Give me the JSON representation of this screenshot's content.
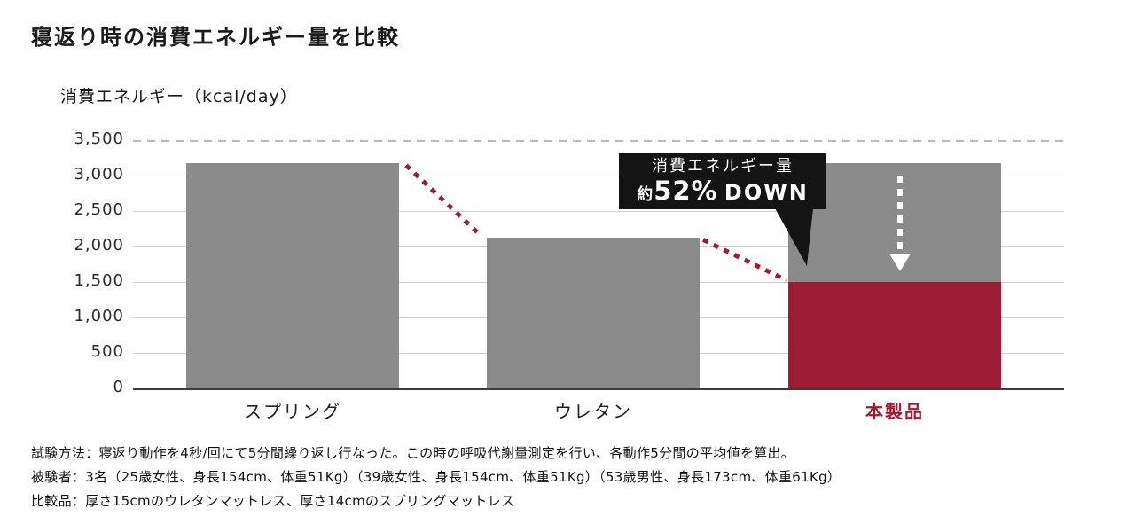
{
  "chart_data": {
    "type": "bar",
    "title": "寝返り時の消費エネルギー量を比較",
    "ylabel": "消費エネルギー（kcal/day）",
    "categories": [
      "スプリング",
      "ウレタン",
      "本製品"
    ],
    "values": [
      3170,
      2120,
      1500
    ],
    "baseline_reference": 3170,
    "highlight_index": 2,
    "ylim": [
      0,
      3500
    ],
    "ytick_interval": 500,
    "ytick_labels": [
      "3,500",
      "3,000",
      "2,500",
      "2,000",
      "1,500",
      "1,000",
      "500",
      "0"
    ],
    "grid": true,
    "legend": false,
    "bar_color": "#8b8b8b",
    "highlight_color": "#9c1c35",
    "connector_color": "#9c1c35",
    "annotation": {
      "line1": "消費エネルギー量",
      "prefix": "約",
      "value": "52%",
      "suffix": "DOWN"
    }
  },
  "notes": [
    "試験方法：寝返り動作を4秒/回にて5分間繰り返し行なった。この時の呼吸代謝量測定を行い、各動作5分間の平均値を算出。",
    "被験者：3名（25歳女性、身長154cm、体重51Kg）（39歳女性、身長154cm、体重51Kg）（53歳男性、身長173cm、体重61Kg）",
    "比較品：厚さ15cmのウレタンマットレス、厚さ14cmのスプリングマットレス"
  ]
}
